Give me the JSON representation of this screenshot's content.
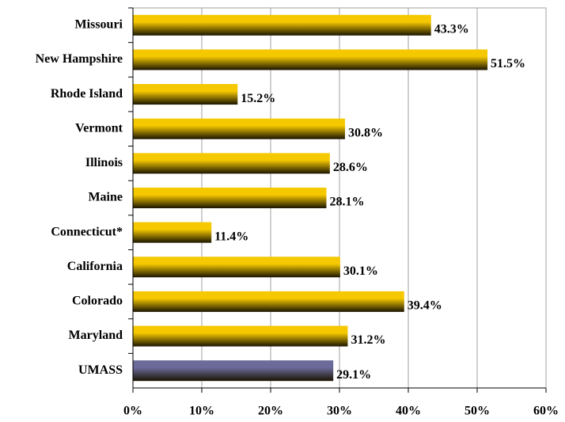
{
  "chart_data": {
    "type": "barh",
    "categories": [
      "Missouri",
      "New Hampshire",
      "Rhode Island",
      "Vermont",
      "Illinois",
      "Maine",
      "Connecticut*",
      "California",
      "Colorado",
      "Maryland",
      "UMASS"
    ],
    "values": [
      43.3,
      51.5,
      15.2,
      30.8,
      28.6,
      28.1,
      11.4,
      30.1,
      39.4,
      31.2,
      29.1
    ],
    "value_labels": [
      "43.3%",
      "51.5%",
      "15.2%",
      "30.8%",
      "28.6%",
      "28.1%",
      "11.4%",
      "30.1%",
      "39.4%",
      "31.2%",
      "29.1%"
    ],
    "colors": [
      "#f5c800",
      "#f5c800",
      "#f5c800",
      "#f5c800",
      "#f5c800",
      "#f5c800",
      "#f5c800",
      "#f5c800",
      "#f5c800",
      "#f5c800",
      "#6b6b9a"
    ],
    "xlim": [
      0,
      60
    ],
    "xticks": [
      {
        "value": 0,
        "label": "0%"
      },
      {
        "value": 10,
        "label": "10%"
      },
      {
        "value": 20,
        "label": "20%"
      },
      {
        "value": 30,
        "label": "30%"
      },
      {
        "value": 40,
        "label": "40%"
      },
      {
        "value": 50,
        "label": "50%"
      },
      {
        "value": 60,
        "label": "60%"
      }
    ],
    "grid": true
  }
}
